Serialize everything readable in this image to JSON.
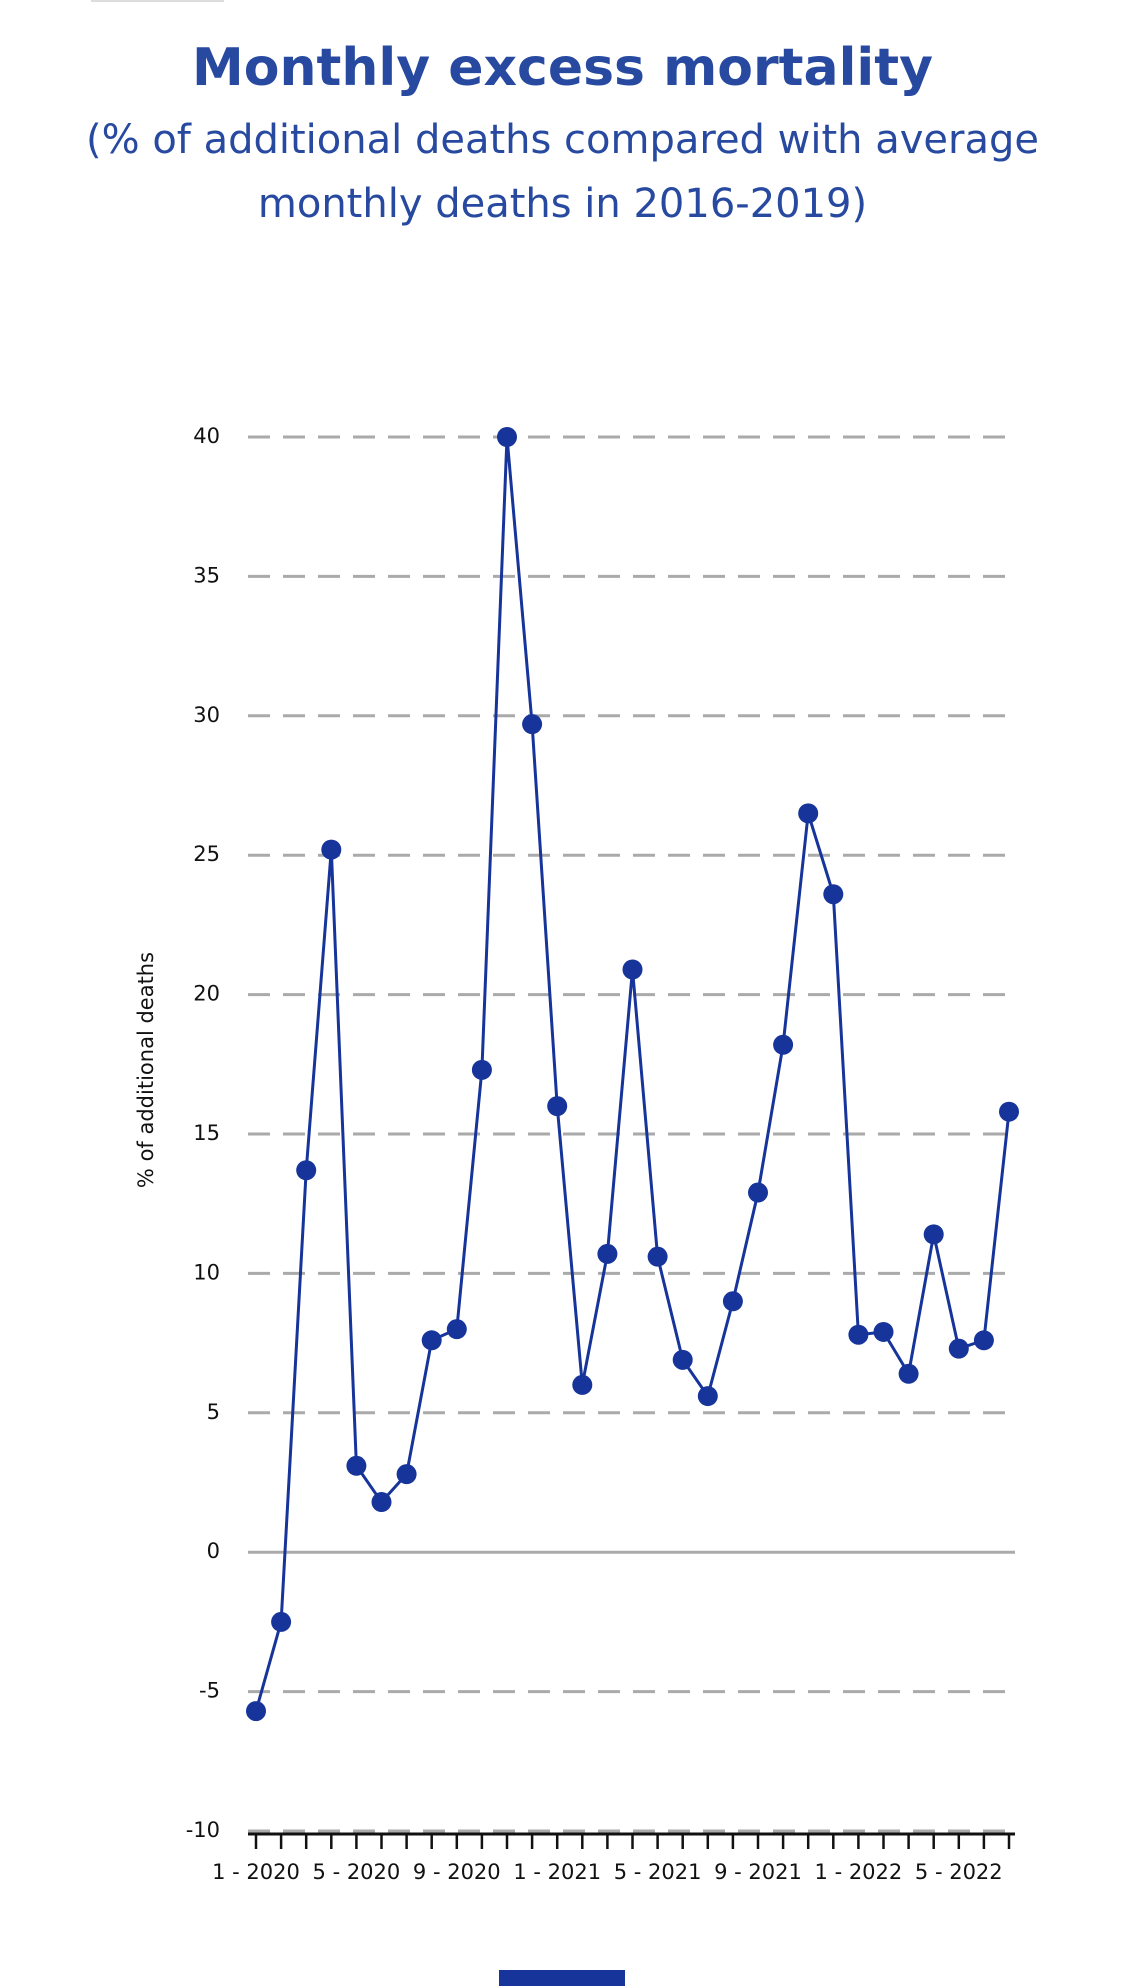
{
  "chart_data": {
    "type": "line",
    "title": "Monthly excess mortality",
    "subtitle": "(% of additional deaths compared with average monthly deaths in 2016-2019)",
    "y_label": "% of additional deaths",
    "categories": [
      "1 - 2020",
      null,
      null,
      null,
      "5 - 2020",
      null,
      null,
      null,
      "9 - 2020",
      null,
      null,
      null,
      "1 - 2021",
      null,
      null,
      null,
      "5 - 2021",
      null,
      null,
      null,
      "9 - 2021",
      null,
      null,
      null,
      "1 - 2022",
      null,
      null,
      null,
      "5 - 2022",
      null,
      null
    ],
    "series": [
      {
        "name": "Excess mortality",
        "color": "#16349a",
        "values": [
          -5.7,
          -2.5,
          13.7,
          25.2,
          3.1,
          1.8,
          2.8,
          7.6,
          8.0,
          17.3,
          40.0,
          29.7,
          16.0,
          6.0,
          10.7,
          20.9,
          10.6,
          6.9,
          5.6,
          9.0,
          12.9,
          18.2,
          26.5,
          23.6,
          7.8,
          7.9,
          6.4,
          11.4,
          7.3,
          7.6,
          15.8
        ]
      }
    ],
    "ylim": [
      -10,
      40
    ],
    "yticks": [
      -10,
      -5,
      0,
      5,
      10,
      15,
      20,
      25,
      30,
      35,
      40
    ],
    "grid": true
  }
}
